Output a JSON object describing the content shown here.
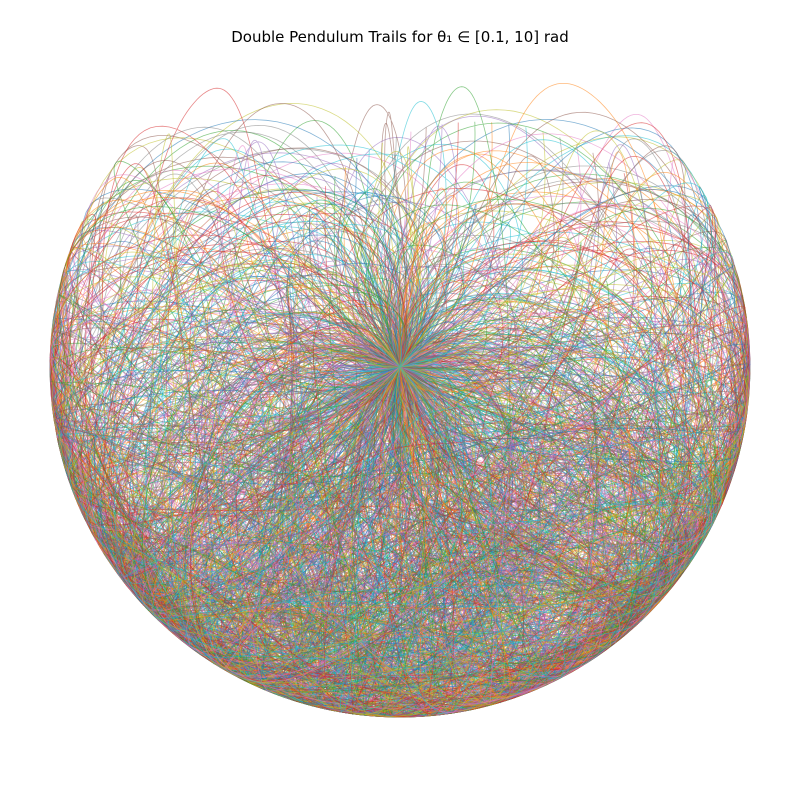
{
  "chart_data": {
    "type": "line",
    "title": "Double Pendulum Trails for θ₁ ∈ [0.1, 10] rad",
    "xlabel": "",
    "ylabel": "",
    "axes_visible": false,
    "grid": false,
    "legend": "none",
    "theta1_range": [
      0.1,
      10
    ],
    "xlim": [
      -2.05,
      2.05
    ],
    "ylim": [
      -2.05,
      2.05
    ],
    "colors": [
      "#1f77b4",
      "#ff7f0e",
      "#2ca02c",
      "#d62728",
      "#9467bd",
      "#8c564b",
      "#e377c2",
      "#7f7f7f",
      "#bcbd22",
      "#17becf"
    ],
    "opacity": 0.55
  }
}
